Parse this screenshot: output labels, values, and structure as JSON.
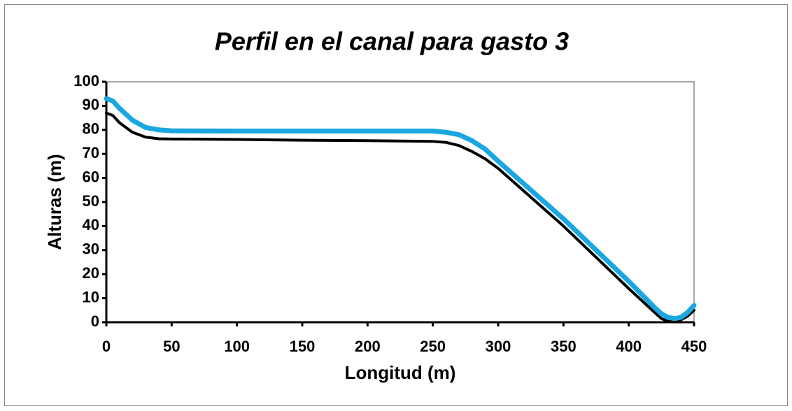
{
  "chart_data": {
    "type": "line",
    "title": "Perfil en el canal para gasto 3",
    "xlabel": "Longitud (m)",
    "ylabel": "Alturas (m)",
    "x": [
      0,
      5,
      10,
      20,
      30,
      40,
      50,
      100,
      150,
      200,
      250,
      260,
      270,
      280,
      290,
      300,
      350,
      400,
      420,
      425,
      430,
      435,
      440,
      445,
      450
    ],
    "series": [
      {
        "color": "#000000",
        "values": [
          87,
          86,
          83,
          79,
          77,
          76.3,
          76.2,
          76,
          75.7,
          75.5,
          75.2,
          74.8,
          73.5,
          71,
          68,
          64,
          40,
          14,
          4,
          1.5,
          0.5,
          0.5,
          1,
          2.5,
          5
        ]
      },
      {
        "color": "#1aa7e1",
        "values": [
          93,
          92,
          89,
          84,
          81,
          80,
          79.6,
          79.5,
          79.5,
          79.5,
          79.5,
          79,
          78,
          75.5,
          72,
          67,
          43,
          17,
          6,
          3.5,
          2,
          1.5,
          2,
          4,
          7
        ]
      }
    ],
    "xlim": [
      0,
      450
    ],
    "xticks": [
      0,
      50,
      100,
      150,
      200,
      250,
      300,
      350,
      400,
      450
    ],
    "ylim": [
      0,
      100
    ],
    "yticks": [
      0,
      10,
      20,
      30,
      40,
      50,
      60,
      70,
      80,
      90,
      100
    ],
    "grid": false
  }
}
